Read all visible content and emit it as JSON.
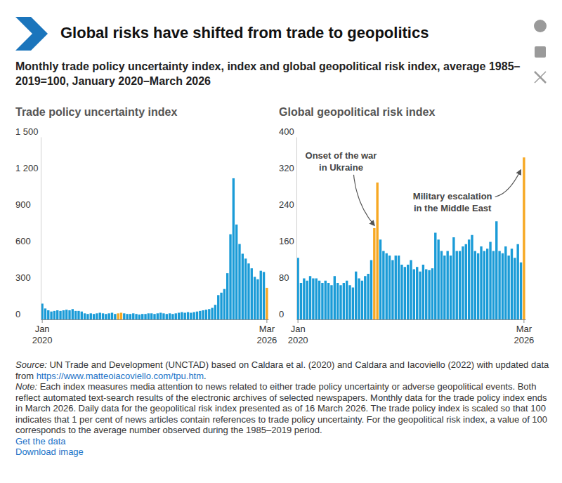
{
  "title": "Global risks have shifted from trade to geopolitics",
  "subtitle": "Monthly trade policy uncertainty index, index and global geopolitical risk index, average 1985–2019=100, January 2020–March 2026",
  "chart_data": [
    {
      "type": "bar",
      "title": "Trade policy uncertainty index",
      "categories": [
        "Jan 2020",
        null,
        null,
        null,
        null,
        null,
        null,
        null,
        null,
        null,
        null,
        null,
        null,
        null,
        null,
        null,
        null,
        null,
        null,
        null,
        null,
        null,
        null,
        null,
        null,
        null,
        null,
        null,
        null,
        null,
        null,
        null,
        null,
        null,
        null,
        null,
        null,
        null,
        null,
        null,
        null,
        null,
        null,
        null,
        null,
        null,
        null,
        null,
        null,
        null,
        null,
        null,
        null,
        null,
        null,
        null,
        null,
        null,
        null,
        null,
        null,
        null,
        null,
        null,
        null,
        null,
        null,
        null,
        null,
        null,
        null,
        null,
        null,
        null,
        "Mar 2026"
      ],
      "values": [
        130,
        90,
        75,
        65,
        70,
        75,
        70,
        75,
        80,
        75,
        85,
        70,
        70,
        65,
        50,
        45,
        50,
        45,
        50,
        55,
        50,
        45,
        50,
        55,
        45,
        50,
        55,
        50,
        45,
        45,
        50,
        45,
        40,
        45,
        45,
        50,
        50,
        45,
        50,
        55,
        50,
        45,
        50,
        45,
        50,
        55,
        60,
        55,
        60,
        55,
        60,
        65,
        70,
        75,
        80,
        85,
        95,
        120,
        200,
        220,
        250,
        380,
        700,
        1160,
        780,
        620,
        540,
        500,
        460,
        420,
        350,
        330,
        400,
        390,
        260
      ],
      "colors": [
        "#1a9bd7",
        "#1a9bd7",
        "#1a9bd7",
        "#1a9bd7",
        "#1a9bd7",
        "#1a9bd7",
        "#1a9bd7",
        "#1a9bd7",
        "#1a9bd7",
        "#1a9bd7",
        "#1a9bd7",
        "#1a9bd7",
        "#1a9bd7",
        "#1a9bd7",
        "#1a9bd7",
        "#1a9bd7",
        "#1a9bd7",
        "#1a9bd7",
        "#1a9bd7",
        "#1a9bd7",
        "#1a9bd7",
        "#1a9bd7",
        "#1a9bd7",
        "#1a9bd7",
        "#1a9bd7",
        "#f7a823",
        "#f7a823",
        "#1a9bd7",
        "#1a9bd7",
        "#1a9bd7",
        "#1a9bd7",
        "#1a9bd7",
        "#1a9bd7",
        "#1a9bd7",
        "#1a9bd7",
        "#1a9bd7",
        "#1a9bd7",
        "#1a9bd7",
        "#1a9bd7",
        "#1a9bd7",
        "#1a9bd7",
        "#1a9bd7",
        "#1a9bd7",
        "#1a9bd7",
        "#1a9bd7",
        "#1a9bd7",
        "#1a9bd7",
        "#1a9bd7",
        "#1a9bd7",
        "#1a9bd7",
        "#1a9bd7",
        "#1a9bd7",
        "#1a9bd7",
        "#1a9bd7",
        "#1a9bd7",
        "#1a9bd7",
        "#1a9bd7",
        "#1a9bd7",
        "#1a9bd7",
        "#1a9bd7",
        "#1a9bd7",
        "#1a9bd7",
        "#1a9bd7",
        "#1a9bd7",
        "#1a9bd7",
        "#1a9bd7",
        "#1a9bd7",
        "#1a9bd7",
        "#1a9bd7",
        "#1a9bd7",
        "#1a9bd7",
        "#1a9bd7",
        "#1a9bd7",
        "#1a9bd7",
        "#f7a823"
      ],
      "ylim": [
        0,
        1500
      ],
      "yticks": [
        0,
        300,
        600,
        900,
        {
          "value": 1200,
          "label": "1 200"
        },
        {
          "value": 1500,
          "label": "1 500"
        }
      ],
      "grid": false
    },
    {
      "type": "bar",
      "title": "Global geopolitical risk index",
      "categories": [
        "Jan 2020",
        null,
        null,
        null,
        null,
        null,
        null,
        null,
        null,
        null,
        null,
        null,
        null,
        null,
        null,
        null,
        null,
        null,
        null,
        null,
        null,
        null,
        null,
        null,
        null,
        null,
        null,
        null,
        null,
        null,
        null,
        null,
        null,
        null,
        null,
        null,
        null,
        null,
        null,
        null,
        null,
        null,
        null,
        null,
        null,
        null,
        null,
        null,
        null,
        null,
        null,
        null,
        null,
        null,
        null,
        null,
        null,
        null,
        null,
        null,
        null,
        null,
        null,
        null,
        null,
        null,
        null,
        null,
        null,
        null,
        null,
        null,
        null,
        null,
        "Mar 2026"
      ],
      "values": [
        135,
        80,
        90,
        85,
        95,
        90,
        90,
        85,
        80,
        85,
        80,
        75,
        95,
        80,
        75,
        80,
        85,
        75,
        70,
        105,
        90,
        85,
        95,
        100,
        130,
        200,
        300,
        175,
        150,
        145,
        140,
        130,
        140,
        140,
        120,
        115,
        120,
        130,
        110,
        115,
        105,
        120,
        110,
        108,
        112,
        190,
        175,
        150,
        140,
        150,
        140,
        180,
        150,
        150,
        160,
        165,
        175,
        185,
        150,
        145,
        160,
        150,
        155,
        170,
        150,
        215,
        150,
        145,
        160,
        140,
        155,
        135,
        165,
        125,
        355
      ],
      "colors": [
        "#1a9bd7",
        "#1a9bd7",
        "#1a9bd7",
        "#1a9bd7",
        "#1a9bd7",
        "#1a9bd7",
        "#1a9bd7",
        "#1a9bd7",
        "#1a9bd7",
        "#1a9bd7",
        "#1a9bd7",
        "#1a9bd7",
        "#1a9bd7",
        "#1a9bd7",
        "#1a9bd7",
        "#1a9bd7",
        "#1a9bd7",
        "#1a9bd7",
        "#1a9bd7",
        "#1a9bd7",
        "#1a9bd7",
        "#1a9bd7",
        "#1a9bd7",
        "#1a9bd7",
        "#1a9bd7",
        "#f7a823",
        "#f7a823",
        "#1a9bd7",
        "#1a9bd7",
        "#1a9bd7",
        "#1a9bd7",
        "#1a9bd7",
        "#1a9bd7",
        "#1a9bd7",
        "#1a9bd7",
        "#1a9bd7",
        "#1a9bd7",
        "#1a9bd7",
        "#1a9bd7",
        "#1a9bd7",
        "#1a9bd7",
        "#1a9bd7",
        "#1a9bd7",
        "#1a9bd7",
        "#1a9bd7",
        "#1a9bd7",
        "#1a9bd7",
        "#1a9bd7",
        "#1a9bd7",
        "#1a9bd7",
        "#1a9bd7",
        "#1a9bd7",
        "#1a9bd7",
        "#1a9bd7",
        "#1a9bd7",
        "#1a9bd7",
        "#1a9bd7",
        "#1a9bd7",
        "#1a9bd7",
        "#1a9bd7",
        "#1a9bd7",
        "#1a9bd7",
        "#1a9bd7",
        "#1a9bd7",
        "#1a9bd7",
        "#1a9bd7",
        "#1a9bd7",
        "#1a9bd7",
        "#1a9bd7",
        "#1a9bd7",
        "#1a9bd7",
        "#1a9bd7",
        "#1a9bd7",
        "#1a9bd7",
        "#f7a823"
      ],
      "ylim": [
        0,
        400
      ],
      "yticks": [
        0,
        80,
        160,
        240,
        320,
        400
      ],
      "grid": false,
      "annotations": [
        {
          "text": "Onset of the war in Ukraine"
        },
        {
          "text": "Military escalation in the Middle East"
        }
      ]
    }
  ],
  "source": {
    "label": "Source:",
    "text": "UN Trade and Development (UNCTAD) based on Caldara et al. (2020) and Caldara and Iacoviello (2022) with updated data from",
    "link": "https://www.matteoiacoviello.com/tpu.htm",
    "end": "."
  },
  "note": {
    "label": "Note:",
    "text": "Each index measures media attention to news related to either trade policy uncertainty or adverse geopolitical events. Both reflect automated text-search results of the electronic archives of selected newspapers. Monthly data for the trade policy index ends in March 2026. Daily data for the geopolitical risk index presented as of 16 March 2026. The trade policy index is scaled so that 100 indicates that 1 per cent of news articles contain references to trade policy uncertainty. For the geopolitical risk index, a value of 100 corresponds to the average number observed during the 1985–2019 period."
  },
  "links": [
    "Get the data",
    "Download image"
  ]
}
